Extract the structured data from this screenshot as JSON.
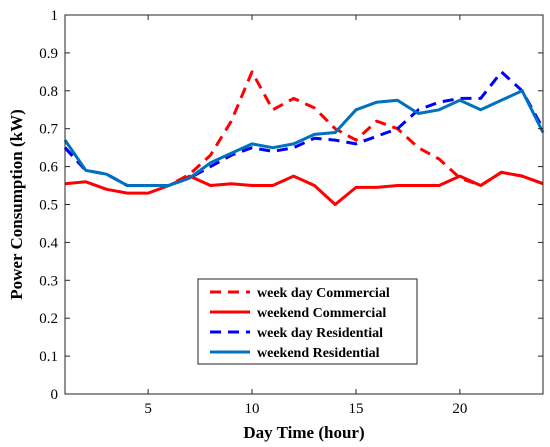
{
  "chart_data": {
    "type": "line",
    "xlabel": "Day Time (hour)",
    "ylabel": "Power Consumption (kW)",
    "xlim": [
      1,
      24
    ],
    "ylim": [
      0,
      1
    ],
    "x_ticks": [
      5,
      10,
      15,
      20
    ],
    "y_ticks": [
      0,
      0.1,
      0.2,
      0.3,
      0.4,
      0.5,
      0.6,
      0.7,
      0.8,
      0.9,
      1
    ],
    "x_tick_labels": [
      "5",
      "10",
      "15",
      "20"
    ],
    "y_tick_labels": [
      "0",
      "0.1",
      "0.2",
      "0.3",
      "0.4",
      "0.5",
      "0.6",
      "0.7",
      "0.8",
      "0.9",
      "1"
    ],
    "grid": false,
    "legend_position": "bottom-center",
    "x": [
      1,
      2,
      3,
      4,
      5,
      6,
      7,
      8,
      9,
      10,
      11,
      12,
      13,
      14,
      15,
      16,
      17,
      18,
      19,
      20,
      21,
      22,
      23,
      24
    ],
    "series": [
      {
        "name": "week day Commercial",
        "color": "#ff0000",
        "dash": "dashed",
        "values": [
          0.65,
          0.59,
          0.58,
          0.55,
          0.55,
          0.55,
          0.58,
          0.63,
          0.72,
          0.85,
          0.75,
          0.78,
          0.755,
          0.7,
          0.67,
          0.72,
          0.7,
          0.65,
          0.62,
          0.57,
          0.55,
          0.585,
          0.575,
          0.555
        ]
      },
      {
        "name": "weekend Commercial",
        "color": "#ff0000",
        "dash": "solid",
        "values": [
          0.555,
          0.56,
          0.54,
          0.53,
          0.53,
          0.55,
          0.575,
          0.55,
          0.555,
          0.55,
          0.55,
          0.575,
          0.55,
          0.5,
          0.545,
          0.545,
          0.55,
          0.55,
          0.55,
          0.575,
          0.55,
          0.585,
          0.575,
          0.555
        ]
      },
      {
        "name": "week day Residential",
        "color": "#0000ff",
        "dash": "dashed",
        "values": [
          0.65,
          0.59,
          0.58,
          0.55,
          0.55,
          0.55,
          0.57,
          0.6,
          0.63,
          0.65,
          0.64,
          0.65,
          0.675,
          0.67,
          0.66,
          0.68,
          0.7,
          0.75,
          0.77,
          0.78,
          0.78,
          0.85,
          0.8,
          0.7
        ]
      },
      {
        "name": "weekend Residential",
        "color": "#0072bd",
        "dash": "solid",
        "values": [
          0.67,
          0.59,
          0.58,
          0.55,
          0.55,
          0.55,
          0.57,
          0.61,
          0.635,
          0.66,
          0.65,
          0.66,
          0.685,
          0.69,
          0.75,
          0.77,
          0.775,
          0.74,
          0.75,
          0.775,
          0.75,
          0.775,
          0.8,
          0.69
        ]
      }
    ]
  }
}
